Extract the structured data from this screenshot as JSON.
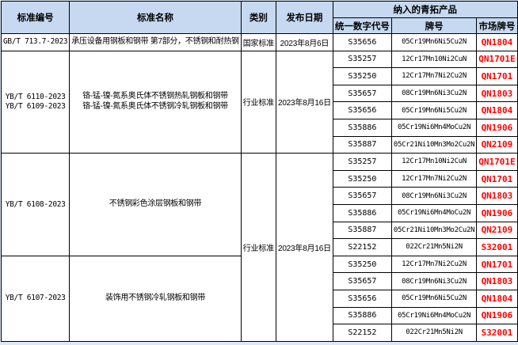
{
  "table": {
    "headers": {
      "col_standard_no": "标准编号",
      "col_standard_name": "标准名称",
      "col_category": "类别",
      "col_release_date": "发布日期",
      "col_products_group": "纳入的青拓产品",
      "col_code": "统一数字代号",
      "col_grade": "牌号",
      "col_market_grade": "市场牌号"
    },
    "colors": {
      "header_bg": "#c6d9f0",
      "market_grade_text": "#ff0000",
      "border": "#000000",
      "page_bg": "#dce8f5"
    },
    "groups": [
      {
        "standard_no": [
          "GB/T 713.7-2023"
        ],
        "standard_name": [
          "承压设备用钢板和钢带 第7部分，不锈钢和耐热钢"
        ],
        "category": "国家标准",
        "release_date": "2023年8月6日",
        "products": [
          {
            "code": "S35656",
            "grade": "05Cr19Mn6Ni5Cu2N",
            "market": "QN1804"
          }
        ]
      },
      {
        "standard_no": [
          "YB/T 6110-2023",
          "YB/T 6109-2023"
        ],
        "standard_name": [
          "铬-锰-镍-氮系奥氏体不锈钢热轧钢板和钢带",
          "铬-锰-镍-氮系奥氏体不锈钢冷轧钢板和钢带"
        ],
        "category": "行业标准",
        "release_date": "2023年8月16日",
        "products": [
          {
            "code": "S35257",
            "grade": "12Cr17Mn10Ni2CuN",
            "market": "QN1701E"
          },
          {
            "code": "S35250",
            "grade": "12Cr17Mn7Ni2Cu2N",
            "market": "QN1701"
          },
          {
            "code": "S35657",
            "grade": "08Cr19Mn6Ni3Cu2N",
            "market": "QN1803"
          },
          {
            "code": "S35656",
            "grade": "05Cr19Mn6Ni5Cu2N",
            "market": "QN1804"
          },
          {
            "code": "S35886",
            "grade": "05Cr19Ni6Mn4MoCu2N",
            "market": "QN1906"
          },
          {
            "code": "S35887",
            "grade": "05Cr21Ni10Mn3Mo2Cu2N",
            "market": "QN2109"
          }
        ]
      },
      {
        "standard_no": [
          "YB/T 6108-2023"
        ],
        "standard_name": [
          "不锈钢彩色涂层钢板和钢带"
        ],
        "category": "行业标准",
        "release_date": "2023年8月16日",
        "category_spans_next_group": true,
        "products": [
          {
            "code": "S35257",
            "grade": "12Cr17Mn10Ni2CuN",
            "market": "QN1701E"
          },
          {
            "code": "S35250",
            "grade": "12Cr17Mn7Ni2Cu2N",
            "market": "QN1701"
          },
          {
            "code": "S35657",
            "grade": "08Cr19Mn6Ni3Cu2N",
            "market": "QN1803"
          },
          {
            "code": "S35886",
            "grade": "05Cr19Ni6Mn4MoCu2N",
            "market": "QN1906"
          },
          {
            "code": "S35887",
            "grade": "05Cr21Ni10Mn3Mo2Cu2N",
            "market": "QN2109"
          },
          {
            "code": "S22152",
            "grade": "022Cr21Mn5Ni2N",
            "market": "S32001"
          }
        ]
      },
      {
        "standard_no": [
          "YB/T 6107-2023"
        ],
        "standard_name": [
          "装饰用不锈钢冷轧钢板和钢带"
        ],
        "category_merged_above": true,
        "products": [
          {
            "code": "S35250",
            "grade": "12Cr17Mn7Ni2Cu2N",
            "market": "QN1701"
          },
          {
            "code": "S35657",
            "grade": "08Cr19Mn6Ni3Cu2N",
            "market": "QN1803"
          },
          {
            "code": "S35656",
            "grade": "05Cr19Mn6Ni5Cu2N",
            "market": "QN1804"
          },
          {
            "code": "S35886",
            "grade": "05Cr19Ni6Mn4MoCu2N",
            "market": "QN1906"
          },
          {
            "code": "S22152",
            "grade": "022Cr21Mn5Ni2N",
            "market": "S32001"
          }
        ]
      }
    ]
  }
}
